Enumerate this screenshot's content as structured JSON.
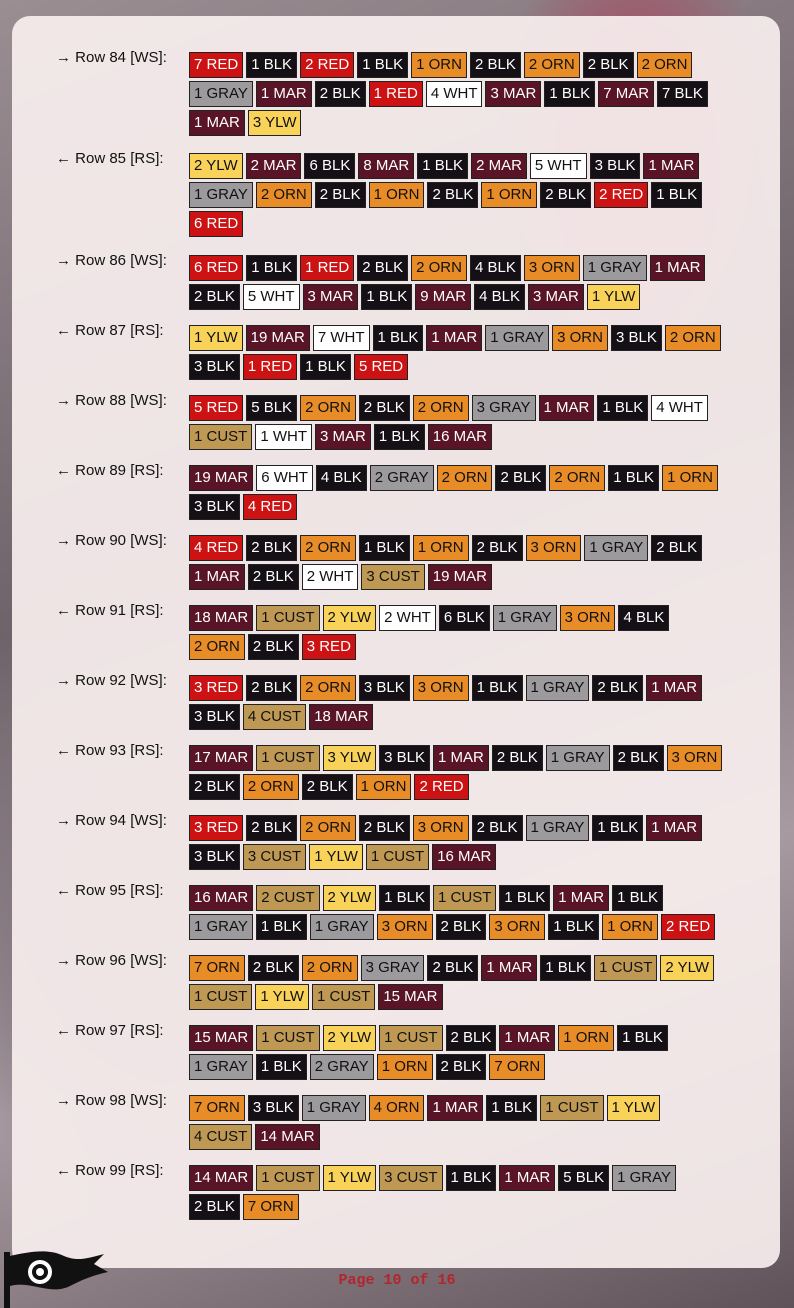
{
  "colors": {
    "RED": "#cc1212",
    "BLK": "#151015",
    "ORN": "#e88c27",
    "GRAY": "#9d9a9d",
    "MAR": "#5a1428",
    "WHT": "#ffffff",
    "YLW": "#f9d25a",
    "CUST": "#bf9954"
  },
  "rows": [
    {
      "label": "→ Row 84 [WS]:",
      "stitches": [
        "7 RED",
        "1 BLK",
        "2 RED",
        "1 BLK",
        "1 ORN",
        "2 BLK",
        "2 ORN",
        "2 BLK",
        "2 ORN",
        "1 GRAY",
        "1 MAR",
        "2 BLK",
        "1 RED",
        "4 WHT",
        "3 MAR",
        "1 BLK",
        "7 MAR",
        "7 BLK",
        "1 MAR",
        "3 YLW"
      ]
    },
    {
      "label": "← Row 85 [RS]:",
      "stitches": [
        "2 YLW",
        "2 MAR",
        "6 BLK",
        "8 MAR",
        "1 BLK",
        "2 MAR",
        "5 WHT",
        "3 BLK",
        "1 MAR",
        "1 GRAY",
        "2 ORN",
        "2 BLK",
        "1 ORN",
        "2 BLK",
        "1 ORN",
        "2 BLK",
        "2 RED",
        "1 BLK",
        "6 RED"
      ]
    },
    {
      "label": "→ Row 86 [WS]:",
      "stitches": [
        "6 RED",
        "1 BLK",
        "1 RED",
        "2 BLK",
        "2 ORN",
        "4 BLK",
        "3 ORN",
        "1 GRAY",
        "1 MAR",
        "2 BLK",
        "5 WHT",
        "3 MAR",
        "1 BLK",
        "9 MAR",
        "4 BLK",
        "3 MAR",
        "1 YLW"
      ]
    },
    {
      "label": "← Row 87 [RS]:",
      "stitches": [
        "1 YLW",
        "19 MAR",
        "7 WHT",
        "1 BLK",
        "1 MAR",
        "1 GRAY",
        "3 ORN",
        "3 BLK",
        "2 ORN",
        "3 BLK",
        "1 RED",
        "1 BLK",
        "5 RED"
      ]
    },
    {
      "label": "→ Row 88 [WS]:",
      "stitches": [
        "5 RED",
        "5 BLK",
        "2 ORN",
        "2 BLK",
        "2 ORN",
        "3 GRAY",
        "1 MAR",
        "1 BLK",
        "4 WHT",
        "1 CUST",
        "1 WHT",
        "3 MAR",
        "1 BLK",
        "16 MAR"
      ]
    },
    {
      "label": "← Row 89 [RS]:",
      "stitches": [
        "19 MAR",
        "6 WHT",
        "4 BLK",
        "2 GRAY",
        "2 ORN",
        "2 BLK",
        "2 ORN",
        "1 BLK",
        "1 ORN",
        "3 BLK",
        "4 RED"
      ]
    },
    {
      "label": "→ Row 90 [WS]:",
      "stitches": [
        "4 RED",
        "2 BLK",
        "2 ORN",
        "1 BLK",
        "1 ORN",
        "2 BLK",
        "3 ORN",
        "1 GRAY",
        "2 BLK",
        "1 MAR",
        "2 BLK",
        "2 WHT",
        "3 CUST",
        "19 MAR"
      ]
    },
    {
      "label": "← Row 91 [RS]:",
      "stitches": [
        "18 MAR",
        "1 CUST",
        "2 YLW",
        "2 WHT",
        "6 BLK",
        "1 GRAY",
        "3 ORN",
        "4 BLK",
        "2 ORN",
        "2 BLK",
        "3 RED"
      ]
    },
    {
      "label": "→ Row 92 [WS]:",
      "stitches": [
        "3 RED",
        "2 BLK",
        "2 ORN",
        "3 BLK",
        "3 ORN",
        "1 BLK",
        "1 GRAY",
        "2 BLK",
        "1 MAR",
        "3 BLK",
        "4 CUST",
        "18 MAR"
      ]
    },
    {
      "label": "← Row 93 [RS]:",
      "stitches": [
        "17 MAR",
        "1 CUST",
        "3 YLW",
        "3 BLK",
        "1 MAR",
        "2 BLK",
        "1 GRAY",
        "2 BLK",
        "3 ORN",
        "2 BLK",
        "2 ORN",
        "2 BLK",
        "1 ORN",
        "2 RED"
      ]
    },
    {
      "label": "→ Row 94 [WS]:",
      "stitches": [
        "3 RED",
        "2 BLK",
        "2 ORN",
        "2 BLK",
        "3 ORN",
        "2 BLK",
        "1 GRAY",
        "1 BLK",
        "1 MAR",
        "3 BLK",
        "3 CUST",
        "1 YLW",
        "1 CUST",
        "16 MAR"
      ]
    },
    {
      "label": "← Row 95 [RS]:",
      "stitches": [
        "16 MAR",
        "2 CUST",
        "2 YLW",
        "1 BLK",
        "1 CUST",
        "1 BLK",
        "1 MAR",
        "1 BLK",
        "1 GRAY",
        "1 BLK",
        "1 GRAY",
        "3 ORN",
        "2 BLK",
        "3 ORN",
        "1 BLK",
        "1 ORN",
        "2 RED"
      ]
    },
    {
      "label": "→ Row 96 [WS]:",
      "stitches": [
        "7 ORN",
        "2 BLK",
        "2 ORN",
        "3 GRAY",
        "2 BLK",
        "1 MAR",
        "1 BLK",
        "1 CUST",
        "2 YLW",
        "1 CUST",
        "1 YLW",
        "1 CUST",
        "15 MAR"
      ]
    },
    {
      "label": "← Row 97 [RS]:",
      "stitches": [
        "15 MAR",
        "1 CUST",
        "2 YLW",
        "1 CUST",
        "2 BLK",
        "1 MAR",
        "1 ORN",
        "1 BLK",
        "1 GRAY",
        "1 BLK",
        "2 GRAY",
        "1 ORN",
        "2 BLK",
        "7 ORN"
      ]
    },
    {
      "label": "→ Row 98 [WS]:",
      "stitches": [
        "7 ORN",
        "3 BLK",
        "1 GRAY",
        "4 ORN",
        "1 MAR",
        "1 BLK",
        "1 CUST",
        "1 YLW",
        "4 CUST",
        "14 MAR"
      ]
    },
    {
      "label": "← Row 99 [RS]:",
      "stitches": [
        "14 MAR",
        "1 CUST",
        "1 YLW",
        "3 CUST",
        "1 BLK",
        "1 MAR",
        "5 BLK",
        "1 GRAY",
        "2 BLK",
        "7 ORN"
      ]
    }
  ],
  "footer": {
    "page": "Page 10 of 16"
  }
}
